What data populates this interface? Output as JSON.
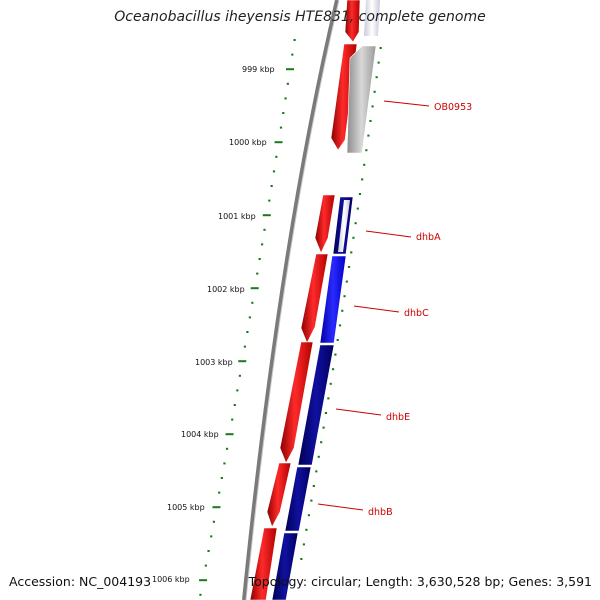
{
  "title": "Oceanobacillus iheyensis HTE831, complete genome",
  "accession": "Accession: NC_004193",
  "topology": "Topology: circular; Length: 3,630,528 bp; Genes: 3,591",
  "scale_labels": [
    "999 kbp",
    "1000 kbp",
    "1001 kbp",
    "1002 kbp",
    "1003 kbp",
    "1004 kbp",
    "1005 kbp",
    "1006 kbp"
  ],
  "genes": [
    {
      "name": "OB0953",
      "strand_color": "#a8a8a8"
    },
    {
      "name": "dhbA",
      "strand_color": "#1f1f8a"
    },
    {
      "name": "dhbC",
      "strand_color": "#0000ff"
    },
    {
      "name": "dhbE",
      "strand_color": "#000080"
    },
    {
      "name": "dhbB",
      "strand_color": "#000080"
    }
  ],
  "colors": {
    "forward_feature": "#ff0000",
    "backbone": "#808080",
    "tick": "#1a7a1a",
    "label": "#cc0000"
  }
}
